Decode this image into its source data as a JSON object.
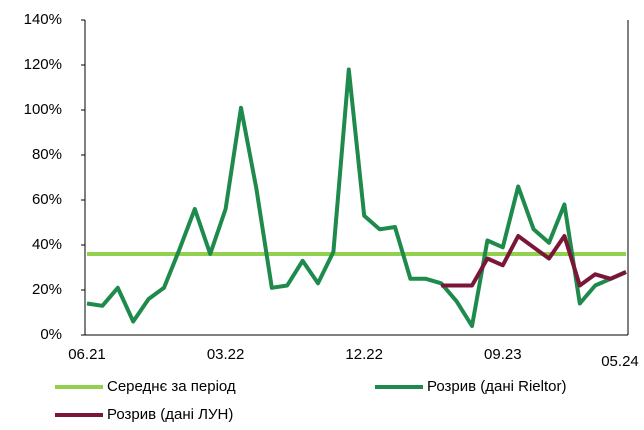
{
  "chart_data": {
    "type": "line",
    "categories": [
      "06.21",
      null,
      null,
      null,
      null,
      null,
      null,
      null,
      null,
      "03.22",
      null,
      null,
      null,
      null,
      null,
      null,
      null,
      null,
      "12.22",
      null,
      null,
      null,
      null,
      null,
      null,
      null,
      null,
      "09.23",
      null,
      null,
      null,
      null,
      null,
      null,
      null,
      "05.24"
    ],
    "series": [
      {
        "name": "Середнє за період",
        "color": "#92d050",
        "values": [
          36,
          36,
          36,
          36,
          36,
          36,
          36,
          36,
          36,
          36,
          36,
          36,
          36,
          36,
          36,
          36,
          36,
          36,
          36,
          36,
          36,
          36,
          36,
          36,
          36,
          36,
          36,
          36,
          36,
          36,
          36,
          36,
          36,
          36,
          36,
          36
        ]
      },
      {
        "name": "Розрив (дані Rieltor)",
        "color": "#1e8a4c",
        "values": [
          14,
          13,
          21,
          6,
          16,
          21,
          38,
          56,
          36,
          56,
          101,
          65,
          21,
          22,
          33,
          23,
          37,
          118,
          53,
          47,
          48,
          25,
          25,
          23,
          15,
          4,
          42,
          39,
          66,
          47,
          41,
          58,
          14,
          22,
          25,
          28
        ]
      },
      {
        "name": "Розрив (дані ЛУН)",
        "color": "#7a1638",
        "values": [
          null,
          null,
          null,
          null,
          null,
          null,
          null,
          null,
          null,
          null,
          null,
          null,
          null,
          null,
          null,
          null,
          null,
          null,
          null,
          null,
          null,
          null,
          null,
          22,
          22,
          22,
          34,
          31,
          44,
          39,
          34,
          44,
          22,
          27,
          25,
          28
        ]
      }
    ],
    "ylim": [
      0,
      140
    ],
    "yticks": [
      {
        "value": 0,
        "label": "0%"
      },
      {
        "value": 20,
        "label": "20%"
      },
      {
        "value": 40,
        "label": "40%"
      },
      {
        "value": 60,
        "label": "60%"
      },
      {
        "value": 80,
        "label": "80%"
      },
      {
        "value": 100,
        "label": "100%"
      },
      {
        "value": 120,
        "label": "120%"
      },
      {
        "value": 140,
        "label": "140%"
      }
    ]
  }
}
